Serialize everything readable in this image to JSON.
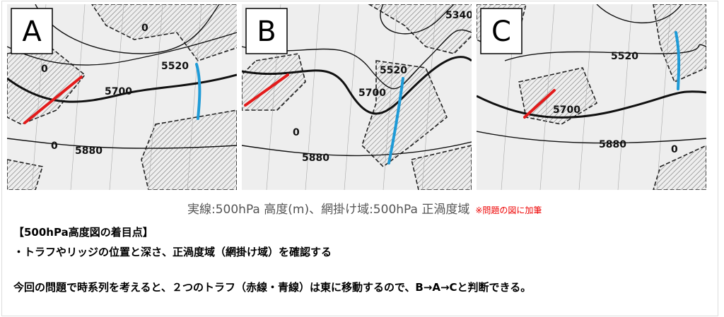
{
  "panels": [
    {
      "label": "A",
      "contours": [
        "5520",
        "5700",
        "5880",
        "0",
        "0",
        "0"
      ]
    },
    {
      "label": "B",
      "contours": [
        "5340",
        "5520",
        "5700",
        "5880",
        "0"
      ]
    },
    {
      "label": "C",
      "contours": [
        "5520",
        "5700",
        "5880",
        "0"
      ]
    }
  ],
  "caption": {
    "text": "実線:500hPa 高度(m)、網掛け域:500hPa 正渦度域",
    "note": "※問題の図に加筆"
  },
  "body": {
    "heading": "【500hPa高度図の着目点】",
    "bullet": "・トラフやリッジの位置と深さ、正渦度域（網掛け域）を確認する",
    "paragraph": "今回の問題で時系列を考えると、２つのトラフ（赤線・青線）は東に移動するので、B→A→Cと判断できる。"
  }
}
